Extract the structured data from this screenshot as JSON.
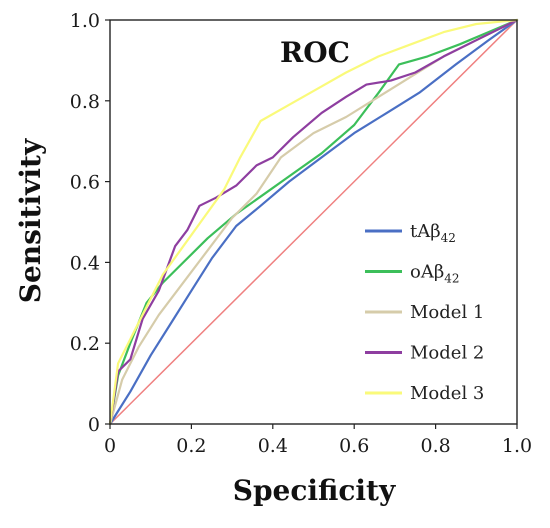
{
  "chart_data": {
    "type": "line",
    "title": "ROC",
    "xlabel": "Specificity",
    "ylabel": "Sensitivity",
    "xlim": [
      0,
      1
    ],
    "ylim": [
      0,
      1
    ],
    "xticks": [
      "0",
      "0.2",
      "0.4",
      "0.6",
      "0.8",
      "1.0"
    ],
    "yticks": [
      "0",
      "0.2",
      "0.4",
      "0.6",
      "0.8",
      "1.0"
    ],
    "grid": false,
    "legend_position": "right",
    "reference_line": {
      "color": "#ef8080",
      "x": [
        0,
        1
      ],
      "y": [
        0,
        1
      ]
    },
    "series": [
      {
        "name": "tAβ42",
        "label_main": "tAβ",
        "label_sub": "42",
        "color": "#4a6fc4",
        "x": [
          0,
          0.05,
          0.1,
          0.15,
          0.2,
          0.25,
          0.31,
          0.37,
          0.44,
          0.52,
          0.6,
          0.68,
          0.76,
          0.85,
          0.93,
          1.0
        ],
        "y": [
          0,
          0.08,
          0.17,
          0.25,
          0.33,
          0.41,
          0.49,
          0.54,
          0.6,
          0.66,
          0.72,
          0.77,
          0.82,
          0.89,
          0.95,
          1.0
        ]
      },
      {
        "name": "oAβ42",
        "label_main": "oAβ",
        "label_sub": "42",
        "color": "#3cbf5a",
        "x": [
          0,
          0.02,
          0.05,
          0.09,
          0.13,
          0.18,
          0.24,
          0.31,
          0.38,
          0.45,
          0.52,
          0.6,
          0.66,
          0.71,
          0.78,
          0.86,
          0.93,
          1.0
        ],
        "y": [
          0,
          0.12,
          0.2,
          0.3,
          0.35,
          0.4,
          0.46,
          0.52,
          0.57,
          0.62,
          0.67,
          0.74,
          0.82,
          0.89,
          0.91,
          0.94,
          0.97,
          1.0
        ]
      },
      {
        "name": "Model 1",
        "label_main": "Model 1",
        "label_sub": "",
        "color": "#d6ccaa",
        "x": [
          0,
          0.03,
          0.07,
          0.12,
          0.18,
          0.24,
          0.3,
          0.36,
          0.42,
          0.5,
          0.58,
          0.66,
          0.74,
          0.82,
          0.9,
          1.0
        ],
        "y": [
          0,
          0.11,
          0.19,
          0.27,
          0.35,
          0.43,
          0.51,
          0.57,
          0.66,
          0.72,
          0.76,
          0.81,
          0.86,
          0.91,
          0.95,
          1.0
        ]
      },
      {
        "name": "Model 2",
        "label_main": "Model 2",
        "label_sub": "",
        "color": "#8e3ea0",
        "x": [
          0,
          0.02,
          0.05,
          0.08,
          0.12,
          0.16,
          0.19,
          0.22,
          0.26,
          0.31,
          0.36,
          0.4,
          0.45,
          0.52,
          0.58,
          0.63,
          0.69,
          0.75,
          0.82,
          0.9,
          1.0
        ],
        "y": [
          0,
          0.13,
          0.16,
          0.26,
          0.33,
          0.44,
          0.48,
          0.54,
          0.56,
          0.59,
          0.64,
          0.66,
          0.71,
          0.77,
          0.81,
          0.84,
          0.85,
          0.87,
          0.91,
          0.95,
          1.0
        ]
      },
      {
        "name": "Model 3",
        "label_main": "Model 3",
        "label_sub": "",
        "color": "#fafa7a",
        "x": [
          0,
          0.02,
          0.05,
          0.09,
          0.13,
          0.18,
          0.23,
          0.28,
          0.32,
          0.37,
          0.44,
          0.51,
          0.58,
          0.66,
          0.74,
          0.82,
          0.9,
          1.0
        ],
        "y": [
          0,
          0.15,
          0.21,
          0.29,
          0.37,
          0.44,
          0.51,
          0.58,
          0.66,
          0.75,
          0.79,
          0.83,
          0.87,
          0.91,
          0.94,
          0.97,
          0.99,
          1.0
        ]
      }
    ]
  }
}
